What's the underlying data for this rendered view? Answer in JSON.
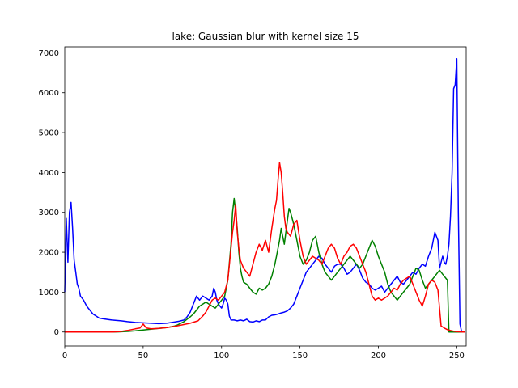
{
  "chart_data": {
    "type": "line",
    "title": "lake: Gaussian blur with kernel size 15",
    "xlabel": "",
    "ylabel": "",
    "xlim": [
      0,
      256
    ],
    "ylim": [
      -350,
      7150
    ],
    "x_ticks": [
      0,
      50,
      100,
      150,
      200,
      250
    ],
    "y_ticks": [
      0,
      1000,
      2000,
      3000,
      4000,
      5000,
      6000,
      7000
    ],
    "grid": false,
    "legend": "none",
    "series": [
      {
        "color": "#0000ff",
        "x": [
          0,
          1,
          2,
          3,
          4,
          5,
          6,
          7,
          8,
          9,
          10,
          12,
          14,
          16,
          18,
          20,
          22,
          25,
          28,
          30,
          33,
          36,
          40,
          45,
          50,
          55,
          60,
          65,
          70,
          73,
          76,
          78,
          80,
          82,
          84,
          86,
          88,
          90,
          92,
          94,
          95,
          96,
          97,
          98,
          99,
          100,
          101,
          102,
          103,
          104,
          105,
          106,
          108,
          110,
          112,
          114,
          116,
          118,
          120,
          122,
          124,
          126,
          128,
          130,
          132,
          134,
          136,
          138,
          140,
          142,
          144,
          146,
          148,
          150,
          152,
          154,
          156,
          158,
          160,
          162,
          164,
          166,
          168,
          170,
          172,
          174,
          176,
          178,
          180,
          182,
          184,
          186,
          188,
          190,
          192,
          194,
          196,
          198,
          200,
          202,
          204,
          206,
          208,
          210,
          212,
          214,
          216,
          218,
          220,
          222,
          224,
          226,
          228,
          230,
          232,
          234,
          236,
          237,
          238,
          239,
          240,
          241,
          242,
          243,
          244,
          245,
          246,
          247,
          248,
          249,
          250,
          251,
          252,
          253,
          254,
          255
        ],
        "y": [
          1000,
          2850,
          1750,
          3000,
          3250,
          2600,
          1800,
          1500,
          1200,
          1100,
          900,
          800,
          650,
          550,
          450,
          400,
          350,
          330,
          310,
          300,
          290,
          280,
          260,
          240,
          230,
          220,
          210,
          220,
          250,
          270,
          300,
          380,
          500,
          700,
          900,
          800,
          900,
          850,
          800,
          900,
          1100,
          1000,
          800,
          700,
          650,
          600,
          700,
          850,
          800,
          700,
          400,
          300,
          300,
          280,
          300,
          280,
          320,
          260,
          250,
          280,
          260,
          300,
          300,
          380,
          420,
          430,
          450,
          480,
          500,
          530,
          600,
          700,
          900,
          1100,
          1300,
          1500,
          1600,
          1700,
          1800,
          1900,
          1850,
          1700,
          1600,
          1500,
          1650,
          1700,
          1700,
          1600,
          1450,
          1500,
          1600,
          1700,
          1550,
          1350,
          1250,
          1200,
          1100,
          1050,
          1100,
          1150,
          1000,
          1100,
          1200,
          1300,
          1400,
          1250,
          1200,
          1300,
          1400,
          1500,
          1450,
          1600,
          1700,
          1650,
          1900,
          2100,
          2500,
          2400,
          2300,
          1600,
          1750,
          1900,
          1750,
          1700,
          1900,
          2200,
          2900,
          4000,
          6100,
          6200,
          6850,
          3000,
          200,
          20,
          5,
          0
        ]
      },
      {
        "color": "#008000",
        "x": [
          0,
          10,
          20,
          30,
          35,
          40,
          45,
          50,
          55,
          60,
          65,
          70,
          72,
          74,
          76,
          78,
          80,
          82,
          84,
          86,
          88,
          90,
          92,
          94,
          96,
          98,
          100,
          102,
          104,
          106,
          107,
          108,
          109,
          110,
          111,
          112,
          113,
          114,
          116,
          118,
          120,
          122,
          124,
          126,
          128,
          130,
          132,
          134,
          135,
          136,
          137,
          138,
          139,
          140,
          141,
          142,
          143,
          144,
          146,
          148,
          150,
          152,
          154,
          156,
          158,
          160,
          162,
          164,
          166,
          168,
          170,
          172,
          174,
          176,
          178,
          180,
          182,
          184,
          186,
          188,
          190,
          192,
          194,
          196,
          198,
          200,
          202,
          204,
          206,
          208,
          210,
          212,
          214,
          216,
          218,
          220,
          222,
          224,
          226,
          228,
          230,
          232,
          234,
          236,
          237,
          238,
          239,
          240,
          241,
          242,
          243,
          244,
          245,
          246,
          247,
          248,
          250,
          252,
          254,
          255
        ],
        "y": [
          0,
          0,
          0,
          0,
          5,
          15,
          30,
          50,
          70,
          90,
          110,
          150,
          180,
          220,
          260,
          320,
          380,
          450,
          550,
          650,
          700,
          750,
          700,
          650,
          600,
          700,
          800,
          900,
          1300,
          2200,
          3000,
          3350,
          3000,
          2600,
          2000,
          1600,
          1400,
          1250,
          1200,
          1100,
          1000,
          950,
          1100,
          1050,
          1100,
          1200,
          1400,
          1700,
          1900,
          2100,
          2300,
          2600,
          2400,
          2200,
          2500,
          2800,
          3100,
          3000,
          2700,
          2300,
          1900,
          1700,
          1800,
          2000,
          2300,
          2400,
          2000,
          1700,
          1500,
          1400,
          1300,
          1400,
          1500,
          1600,
          1700,
          1800,
          1900,
          1800,
          1700,
          1600,
          1700,
          1900,
          2100,
          2300,
          2150,
          1900,
          1700,
          1500,
          1200,
          1000,
          900,
          800,
          900,
          1000,
          1100,
          1200,
          1400,
          1600,
          1550,
          1300,
          1100,
          1200,
          1300,
          1400,
          1450,
          1500,
          1550,
          1500,
          1450,
          1400,
          1350,
          1300,
          0,
          0,
          0,
          0,
          0,
          0,
          0,
          0
        ]
      },
      {
        "color": "#ff0000",
        "x": [
          0,
          10,
          20,
          30,
          35,
          40,
          45,
          48,
          50,
          52,
          55,
          60,
          65,
          70,
          75,
          80,
          85,
          88,
          90,
          92,
          94,
          96,
          98,
          100,
          102,
          104,
          106,
          107,
          108,
          109,
          110,
          111,
          112,
          114,
          116,
          118,
          120,
          122,
          124,
          126,
          128,
          130,
          132,
          134,
          135,
          136,
          137,
          138,
          139,
          140,
          141,
          142,
          144,
          146,
          148,
          150,
          152,
          154,
          156,
          158,
          160,
          162,
          164,
          166,
          168,
          170,
          172,
          174,
          176,
          178,
          180,
          182,
          184,
          186,
          188,
          190,
          192,
          194,
          196,
          198,
          200,
          202,
          204,
          206,
          208,
          210,
          212,
          214,
          216,
          218,
          220,
          222,
          224,
          226,
          228,
          230,
          232,
          234,
          236,
          238,
          240,
          242,
          244,
          246,
          248,
          250,
          252,
          254,
          255
        ],
        "y": [
          0,
          0,
          0,
          0,
          10,
          40,
          80,
          100,
          200,
          100,
          80,
          90,
          110,
          140,
          180,
          220,
          280,
          400,
          500,
          650,
          800,
          850,
          800,
          900,
          1000,
          1300,
          2100,
          2500,
          2800,
          3200,
          2500,
          2100,
          1800,
          1600,
          1500,
          1400,
          1700,
          2000,
          2200,
          2050,
          2300,
          2000,
          2600,
          3100,
          3300,
          3800,
          4250,
          4000,
          3500,
          2900,
          2600,
          2500,
          2400,
          2700,
          2800,
          2300,
          1900,
          1700,
          1800,
          1900,
          1850,
          1800,
          1700,
          1900,
          2100,
          2200,
          2100,
          1850,
          1700,
          1900,
          2000,
          2150,
          2200,
          2100,
          1900,
          1700,
          1500,
          1200,
          900,
          800,
          850,
          800,
          850,
          900,
          1000,
          1100,
          1050,
          1200,
          1300,
          1350,
          1400,
          1200,
          1000,
          800,
          650,
          900,
          1200,
          1300,
          1250,
          1050,
          150,
          100,
          60,
          40,
          20,
          10,
          5,
          0,
          0
        ]
      }
    ]
  }
}
